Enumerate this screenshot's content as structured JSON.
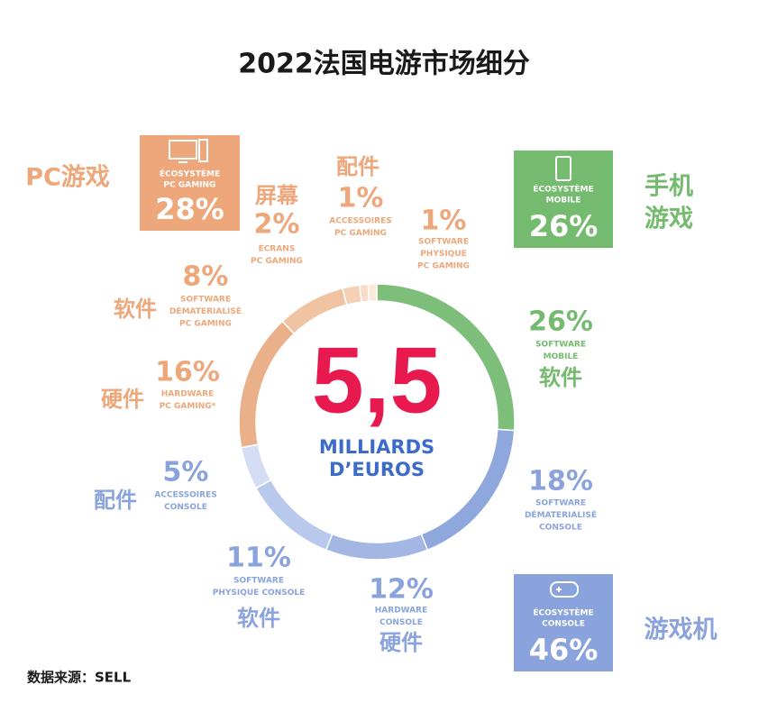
{
  "chart_data": {
    "type": "donut",
    "title": "2022法国电游市场细分",
    "center_value": "5,5",
    "center_label_lines": [
      "MILLIARDS",
      "D’EUROS"
    ],
    "source": "数据来源：SELL",
    "ecosystems": [
      {
        "name_lines": [
          "ÉCOSYSTÈME",
          "MOBILE"
        ],
        "value": 26,
        "value_label": "26%",
        "cn_lines": [
          "手机",
          "游戏"
        ],
        "color": "#74bb6f",
        "segments": [
          {
            "name_lines": [
              "SOFTWARE",
              "MOBILE"
            ],
            "cn": "软件",
            "value": 26,
            "value_label": "26%",
            "color": "#7dbf7a"
          }
        ]
      },
      {
        "name_lines": [
          "ÉCOSYSTÈME",
          "CONSOLE"
        ],
        "value": 46,
        "value_label": "46%",
        "cn_lines": [
          "游戏机"
        ],
        "color": "#8aa3dc",
        "segments": [
          {
            "name_lines": [
              "SOFTWARE",
              "DÉMATERIALISÉ",
              "CONSOLE"
            ],
            "value": 18,
            "value_label": "18%",
            "color": "#8ea7dc"
          },
          {
            "name_lines": [
              "HARDWARE",
              "CONSOLE"
            ],
            "cn": "硬件",
            "value": 12,
            "value_label": "12%",
            "color": "#a3b6e4"
          },
          {
            "name_lines": [
              "SOFTWARE",
              "PHYSIQUE CONSOLE"
            ],
            "cn": "软件",
            "value": 11,
            "value_label": "11%",
            "color": "#b9c8ed"
          },
          {
            "name_lines": [
              "ACCESSOIRES",
              "CONSOLE"
            ],
            "cn": "配件",
            "value": 5,
            "value_label": "5%",
            "color": "#d4ddf3"
          }
        ]
      },
      {
        "name_lines": [
          "ÉCOSYSTÈME",
          "PC GAMING"
        ],
        "value": 28,
        "value_label": "28%",
        "cn_lines": [
          "PC游戏"
        ],
        "color": "#eda77a",
        "segments": [
          {
            "name_lines": [
              "HARDWARE",
              "PC GAMING*"
            ],
            "cn": "硬件",
            "value": 16,
            "value_label": "16%",
            "color": "#eab089"
          },
          {
            "name_lines": [
              "SOFTWARE",
              "DÉMATERIALISÉ",
              "PC GAMING"
            ],
            "cn": "软件",
            "value": 8,
            "value_label": "8%",
            "color": "#f0c3a2"
          },
          {
            "name_lines": [
              "ÉCRANS",
              "PC GAMING"
            ],
            "cn": "屏幕",
            "value": 2,
            "value_label": "2%",
            "color": "#f3d0b6"
          },
          {
            "name_lines": [
              "ACCESSOIRES",
              "PC GAMING"
            ],
            "cn": "配件",
            "value": 1,
            "value_label": "1%",
            "color": "#f7dcc8"
          },
          {
            "name_lines": [
              "SOFTWARE",
              "PHYSIQUE",
              "PC GAMING"
            ],
            "value": 1,
            "value_label": "1%",
            "color": "#fae8da"
          }
        ]
      }
    ]
  }
}
